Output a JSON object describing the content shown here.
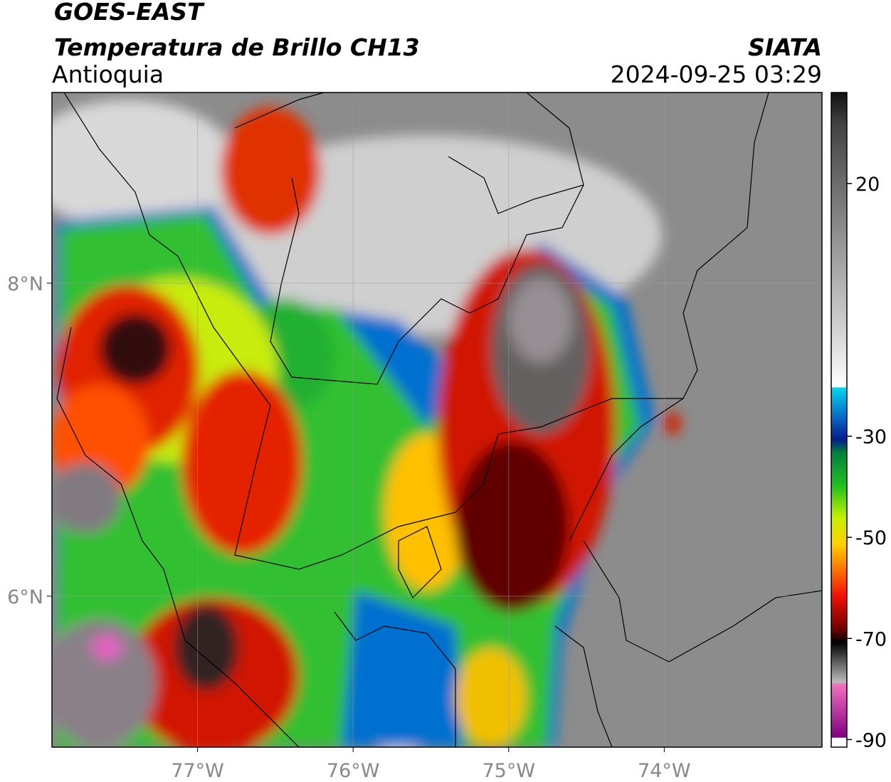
{
  "header": {
    "title": "GOES-EAST",
    "subtitle": "Temperatura de Brillo CH13",
    "region": "Antioquia",
    "source": "SIATA",
    "datetime": "2024-09-25 03:29"
  },
  "map": {
    "lon_lim": [
      -77.936,
      -72.986
    ],
    "lat_lim": [
      5.036,
      9.218
    ],
    "lon_ticks": [
      {
        "value": -77,
        "label": "77°W"
      },
      {
        "value": -76,
        "label": "76°W"
      },
      {
        "value": -75,
        "label": "75°W"
      },
      {
        "value": -74,
        "label": "74°W"
      }
    ],
    "lat_ticks": [
      {
        "value": 8,
        "label": "8°N"
      },
      {
        "value": 6,
        "label": "6°N"
      }
    ],
    "grid": true
  },
  "colorbar": {
    "lim": [
      -91.5,
      38
    ],
    "ticks": [
      20,
      -30,
      -50,
      -70,
      -90
    ]
  }
}
